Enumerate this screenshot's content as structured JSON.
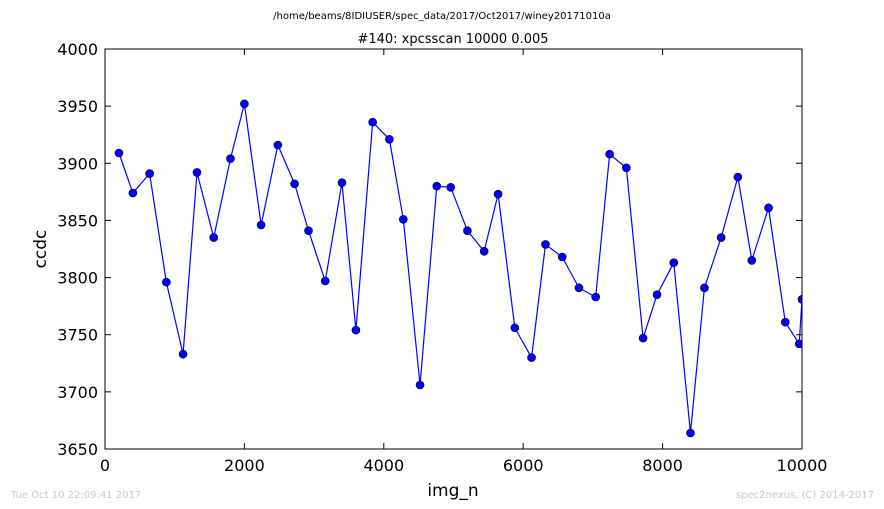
{
  "suptitle": "/home/beams/8IDIUSER/spec_data/2017/Oct2017/winey20171010a",
  "footer_left": "Tue Oct 10 22:09:41 2017",
  "footer_right": "spec2nexus, (C) 2014-2017",
  "chart_data": {
    "type": "line",
    "title": "#140: xpcsscan 10000 0.005",
    "xlabel": "img_n",
    "ylabel": "ccdc",
    "xlim": [
      0,
      10000
    ],
    "ylim": [
      3650,
      4000
    ],
    "xticks": [
      0,
      2000,
      4000,
      6000,
      8000,
      10000
    ],
    "yticks": [
      3650,
      3700,
      3750,
      3800,
      3850,
      3900,
      3950,
      4000
    ],
    "grid": false,
    "line_color": "#0000ff",
    "marker": "circle",
    "series": [
      {
        "x": [
          200,
          400,
          640,
          880,
          1120,
          1320,
          1560,
          1800,
          2000,
          2240,
          2480,
          2720,
          2920,
          3160,
          3400,
          3600,
          3840,
          4080,
          4280,
          4520,
          4760,
          4960,
          5200,
          5440,
          5640,
          5880,
          6120,
          6320,
          6560,
          6800,
          7040,
          7240,
          7480,
          7720,
          7920,
          8160,
          8400,
          8600,
          8840,
          9080,
          9280,
          9520,
          9760,
          9960,
          10000
        ],
        "y": [
          3909,
          3874,
          3891,
          3796,
          3733,
          3892,
          3835,
          3904,
          3952,
          3846,
          3916,
          3882,
          3841,
          3797,
          3883,
          3754,
          3936,
          3921,
          3851,
          3706,
          3880,
          3879,
          3841,
          3823,
          3873,
          3756,
          3730,
          3829,
          3818,
          3791,
          3783,
          3908,
          3896,
          3747,
          3785,
          3813,
          3664,
          3791,
          3835,
          3888,
          3815,
          3861,
          3761,
          3742,
          3781
        ]
      }
    ]
  }
}
